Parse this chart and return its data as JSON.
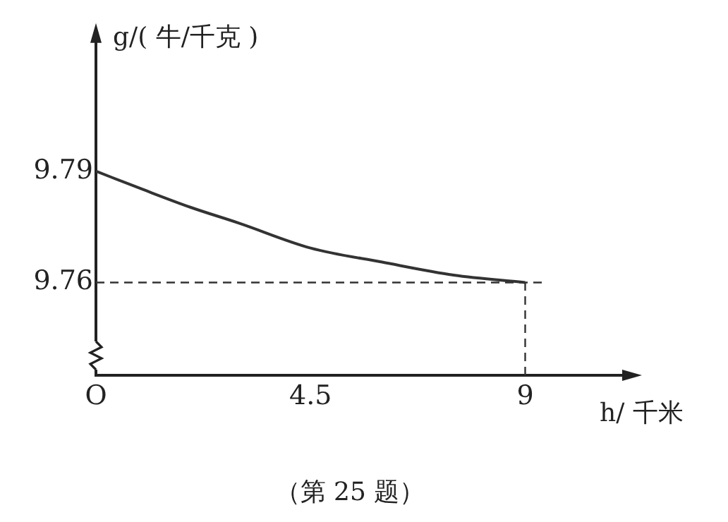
{
  "chart_data": {
    "type": "line",
    "xlabel": "h/ 千米",
    "ylabel": "g/( 牛/千克 )",
    "x": [
      0,
      1,
      2,
      3,
      4.5,
      6,
      7.5,
      9
    ],
    "series": [
      {
        "color": "#333333",
        "values": [
          9.79,
          9.785,
          9.7802,
          9.776,
          9.7693,
          9.7655,
          9.762,
          9.76
        ]
      }
    ],
    "xlim": [
      0,
      11.3
    ],
    "xticks": [
      {
        "value": 0,
        "label": "O"
      },
      4.5,
      9
    ],
    "ylim": [
      9.735,
      9.828
    ],
    "yticks": [
      9.76,
      9.79
    ],
    "ref_lines": [
      {
        "axis": "x",
        "value": 9,
        "line_style": "dashed",
        "color": "#333333"
      },
      {
        "axis": "y",
        "value": 9.76,
        "line_style": "dashed",
        "color": "#333333"
      }
    ],
    "annotations": [
      "（第 25 题）"
    ],
    "grid": false,
    "legend": false,
    "marker": "none",
    "line_style": "solid"
  }
}
